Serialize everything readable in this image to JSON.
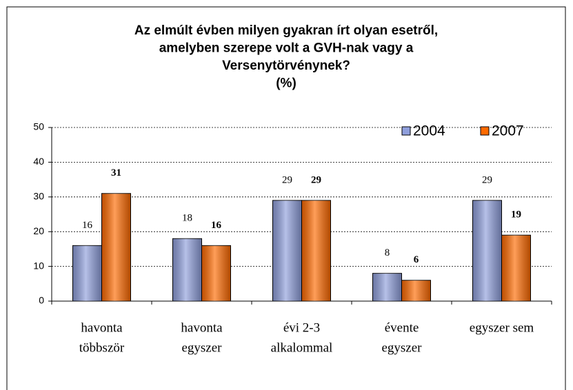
{
  "chart_data": {
    "type": "bar",
    "title": [
      "Az elmúlt évben milyen gyakran írt olyan esetről,",
      "amelyben szerepe volt a GVH-nak vagy a",
      "Versenytörvénynek?",
      "(%)"
    ],
    "categories": [
      [
        "havonta",
        "többször"
      ],
      [
        "havonta",
        "egyszer"
      ],
      [
        "évi 2-3",
        "alkalommal"
      ],
      [
        "évente",
        "egyszer"
      ],
      [
        "egyszer sem"
      ]
    ],
    "series": [
      {
        "name": "2004",
        "color": "#8f9fdc",
        "values": [
          16,
          18,
          29,
          8,
          29
        ]
      },
      {
        "name": "2007",
        "color": "#ff6a00",
        "values": [
          31,
          16,
          29,
          6,
          19
        ]
      }
    ],
    "ylim": [
      0,
      50
    ],
    "yticks": [
      0,
      10,
      20,
      30,
      40,
      50
    ],
    "grid": true,
    "legend": "top-right"
  }
}
